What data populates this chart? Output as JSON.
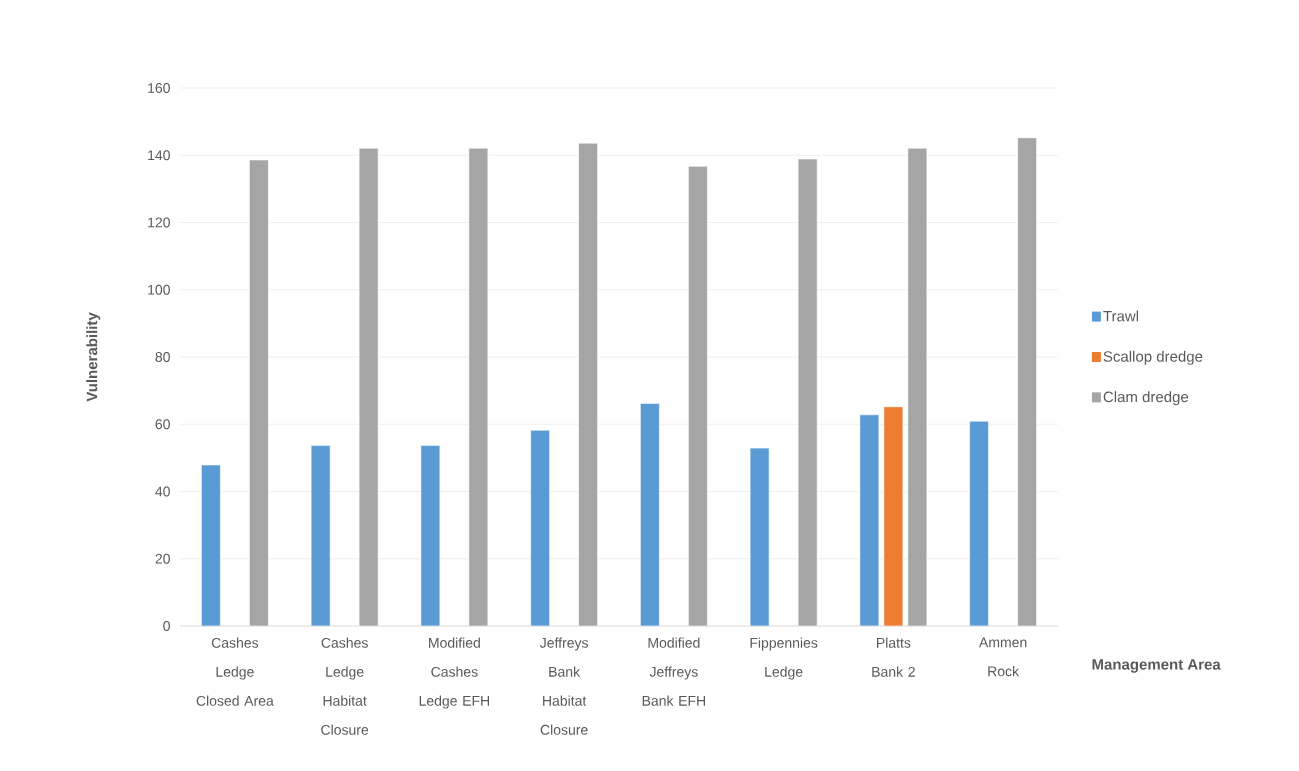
{
  "chart_data": {
    "type": "bar",
    "xlabel": "Management Area",
    "ylabel": "Vulnerability",
    "categories": [
      "Cashes Ledge Closed Area",
      "Cashes Ledge Habitat Closure",
      "Modified Cashes Ledge EFH",
      "Jeffreys Bank Habitat Closure",
      "Modified Jeffreys Bank EFH",
      "Fippennies Ledge",
      "Platts Bank 2",
      "Ammen Rock"
    ],
    "series": [
      {
        "name": "Trawl",
        "color": "#5b9bd5",
        "values": [
          47.9,
          53.7,
          53.7,
          58.2,
          66.2,
          52.9,
          62.8,
          60.9
        ]
      },
      {
        "name": "Scallop dredge",
        "color": "#ed7d31",
        "values": [
          null,
          null,
          null,
          null,
          null,
          null,
          65.2,
          null
        ]
      },
      {
        "name": "Clam dredge",
        "color": "#a5a5a5",
        "values": [
          138.6,
          142.1,
          142.1,
          143.6,
          136.7,
          138.9,
          142.1,
          145.2
        ]
      }
    ],
    "ylim": [
      0,
      160
    ],
    "yticks": [
      0,
      20,
      40,
      60,
      80,
      100,
      120,
      140,
      160
    ],
    "grid": "y",
    "legend": "right"
  }
}
